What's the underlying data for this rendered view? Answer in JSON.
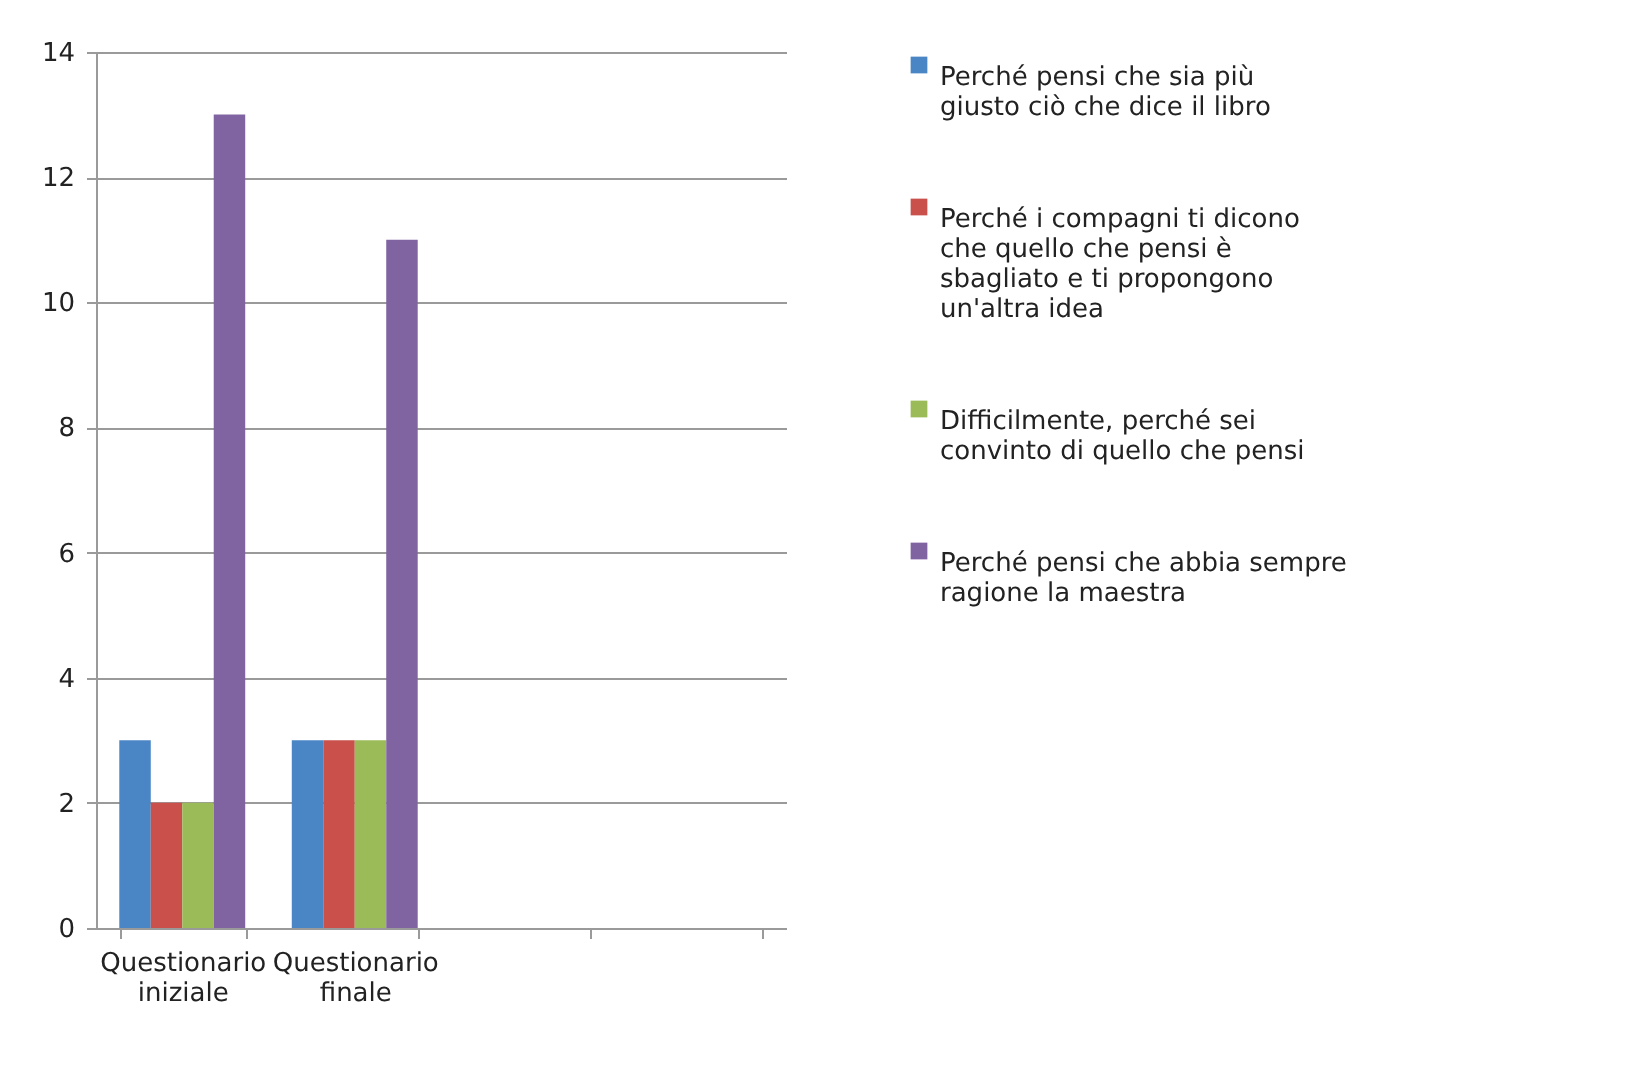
{
  "chart_data": {
    "type": "bar",
    "categories": [
      "Questionario iniziale",
      "Questionario finale",
      null,
      null
    ],
    "series": [
      {
        "name": "Perché pensi che sia più giusto ciò che dice il libro",
        "color": "#4a86c5",
        "values": [
          3,
          3,
          null,
          null
        ]
      },
      {
        "name": "Perché i compagni ti dicono che quello che pensi è sbagliato e ti propongono un'altra idea",
        "color": "#c9504b",
        "values": [
          2,
          3,
          null,
          null
        ]
      },
      {
        "name": "Difficilmente, perché sei convinto di quello che pensi",
        "color": "#9bbb59",
        "values": [
          2,
          3,
          null,
          null
        ]
      },
      {
        "name": "Perché pensi che abbia sempre ragione la maestra",
        "color": "#8064a2",
        "values": [
          13,
          11,
          null,
          null
        ]
      }
    ],
    "ylim": [
      0,
      14
    ],
    "yticks": [
      0,
      2,
      4,
      6,
      8,
      10,
      12,
      14
    ],
    "grid": "y",
    "legend": "right"
  }
}
